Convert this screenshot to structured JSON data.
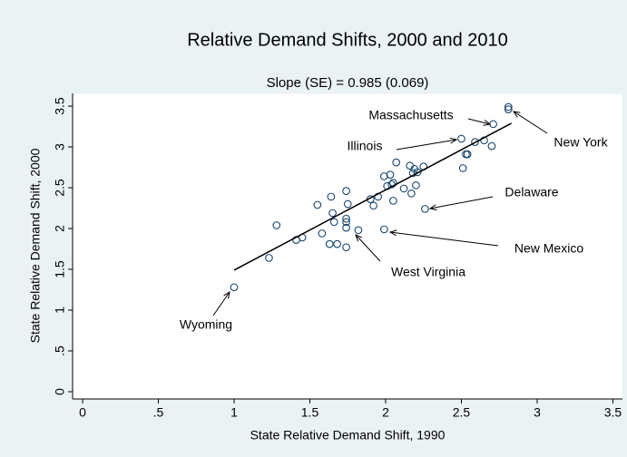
{
  "chart_data": {
    "type": "scatter",
    "title": "Relative Demand Shifts, 2000 and 2010",
    "subtitle": "Slope (SE) = 0.985 (0.069)",
    "x_label": "State Relative Demand Shift, 1990",
    "y_label": "State Relative Demand Shift, 2000",
    "color": "#1a476f",
    "x": [
      1.0,
      1.23,
      1.28,
      1.41,
      1.45,
      1.55,
      1.58,
      1.64,
      1.63,
      1.65,
      1.66,
      1.68,
      1.74,
      1.74,
      1.74,
      1.74,
      1.75,
      1.74,
      1.82,
      1.9,
      1.92,
      1.95,
      1.99,
      1.99,
      2.01,
      2.03,
      2.04,
      2.05,
      2.05,
      2.07,
      2.12,
      2.16,
      2.17,
      2.18,
      2.19,
      2.2,
      2.21,
      2.25,
      2.26,
      2.5,
      2.51,
      2.53,
      2.54,
      2.59,
      2.65,
      2.7,
      2.71,
      2.81,
      2.81
    ],
    "values": [
      1.28,
      1.64,
      2.04,
      1.86,
      1.89,
      2.29,
      1.94,
      2.39,
      1.81,
      2.19,
      2.08,
      1.81,
      2.12,
      2.08,
      2.46,
      2.01,
      2.3,
      1.77,
      1.98,
      2.36,
      2.28,
      2.39,
      2.64,
      1.99,
      2.52,
      2.66,
      2.54,
      2.34,
      2.56,
      2.81,
      2.49,
      2.77,
      2.43,
      2.68,
      2.73,
      2.53,
      2.69,
      2.76,
      2.24,
      3.1,
      2.74,
      2.91,
      2.91,
      3.06,
      3.08,
      3.01,
      3.28,
      3.49,
      3.46
    ],
    "fit": {
      "x": [
        1.0,
        2.83
      ],
      "values": [
        1.49,
        3.29
      ]
    },
    "annotations": [
      "Massachusetts",
      "Illinois",
      "New York",
      "Delaware",
      "New Mexico",
      "West Virginia",
      "Wyoming"
    ],
    "xlim": [
      -0.066,
      3.563
    ],
    "ylim": [
      -0.089,
      3.656
    ],
    "xticks": [
      0,
      {
        "value": 0.5,
        "label": ".5"
      },
      1,
      1.5,
      2,
      2.5,
      3,
      3.5
    ],
    "yticks": [
      0,
      {
        "value": 0.5,
        "label": ".5"
      },
      1,
      1.5,
      2,
      2.5,
      3,
      3.5
    ]
  }
}
